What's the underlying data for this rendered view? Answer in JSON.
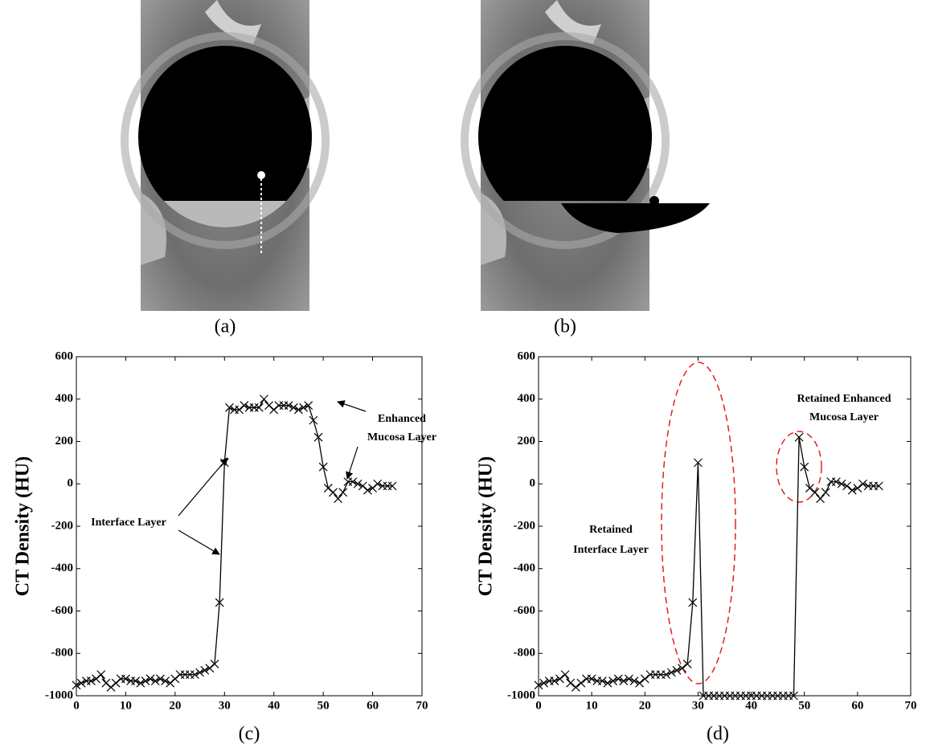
{
  "images": [
    {
      "caption": "(a)"
    },
    {
      "caption": "(b)"
    }
  ],
  "chart_data": [
    {
      "type": "line",
      "caption": "(c)",
      "y_label": "CT Density (HU)",
      "x": [
        0,
        1,
        2,
        3,
        4,
        5,
        6,
        7,
        8,
        9,
        10,
        11,
        12,
        13,
        14,
        15,
        16,
        17,
        18,
        19,
        20,
        21,
        22,
        23,
        24,
        25,
        26,
        27,
        28,
        29,
        30,
        31,
        32,
        33,
        34,
        35,
        36,
        37,
        38,
        39,
        40,
        41,
        42,
        43,
        44,
        45,
        46,
        47,
        48,
        49,
        50,
        51,
        52,
        53,
        54,
        55,
        56,
        57,
        58,
        59,
        60,
        61,
        62,
        63,
        64
      ],
      "series": [
        {
          "color": "#000000",
          "values": [
            -950,
            -940,
            -930,
            -930,
            -920,
            -900,
            -940,
            -960,
            -940,
            -920,
            -920,
            -930,
            -930,
            -940,
            -930,
            -920,
            -930,
            -920,
            -930,
            -940,
            -920,
            -900,
            -900,
            -900,
            -900,
            -890,
            -880,
            -870,
            -850,
            -560,
            100,
            360,
            350,
            350,
            370,
            360,
            360,
            360,
            400,
            370,
            350,
            370,
            370,
            370,
            360,
            350,
            360,
            370,
            300,
            220,
            80,
            -20,
            -40,
            -70,
            -40,
            10,
            10,
            0,
            -10,
            -30,
            -20,
            0,
            -10,
            -10,
            -10
          ]
        }
      ],
      "xlim": [
        0,
        70
      ],
      "xticks": [
        0,
        10,
        20,
        30,
        40,
        50,
        60,
        70
      ],
      "ylim": [
        -1000,
        600
      ],
      "yticks": [
        -1000,
        -800,
        -600,
        -400,
        -200,
        0,
        200,
        400,
        600
      ],
      "annotations": [
        {
          "lines": [
            "Interface Layer"
          ]
        },
        {
          "lines": [
            "Enhanced",
            "Mucosa Layer"
          ]
        }
      ]
    },
    {
      "type": "line",
      "caption": "(d)",
      "y_label": "CT Density (HU)",
      "x": [
        0,
        1,
        2,
        3,
        4,
        5,
        6,
        7,
        8,
        9,
        10,
        11,
        12,
        13,
        14,
        15,
        16,
        17,
        18,
        19,
        20,
        21,
        22,
        23,
        24,
        25,
        26,
        27,
        28,
        29,
        30,
        31,
        32,
        33,
        34,
        35,
        36,
        37,
        38,
        39,
        40,
        41,
        42,
        43,
        44,
        45,
        46,
        47,
        48,
        49,
        50,
        51,
        52,
        53,
        54,
        55,
        56,
        57,
        58,
        59,
        60,
        61,
        62,
        63,
        64
      ],
      "series": [
        {
          "color": "#000000",
          "values": [
            -950,
            -940,
            -930,
            -930,
            -920,
            -900,
            -940,
            -960,
            -940,
            -920,
            -920,
            -930,
            -930,
            -940,
            -930,
            -920,
            -930,
            -920,
            -930,
            -940,
            -920,
            -900,
            -900,
            -900,
            -900,
            -890,
            -880,
            -870,
            -850,
            -560,
            100,
            -1000,
            -1000,
            -1000,
            -1000,
            -1000,
            -1000,
            -1000,
            -1000,
            -1000,
            -1000,
            -1000,
            -1000,
            -1000,
            -1000,
            -1000,
            -1000,
            -1000,
            -1000,
            220,
            80,
            -20,
            -40,
            -70,
            -40,
            10,
            10,
            0,
            -10,
            -30,
            -20,
            0,
            -10,
            -10,
            -10
          ]
        }
      ],
      "xlim": [
        0,
        70
      ],
      "xticks": [
        0,
        10,
        20,
        30,
        40,
        50,
        60,
        70
      ],
      "ylim": [
        -1000,
        600
      ],
      "yticks": [
        -1000,
        -800,
        -600,
        -400,
        -200,
        0,
        200,
        400,
        600
      ],
      "annotations": [
        {
          "lines": [
            "Retained",
            "Interface Layer"
          ]
        },
        {
          "lines": [
            "Retained Enhanced",
            "Mucosa Layer"
          ]
        }
      ]
    }
  ]
}
